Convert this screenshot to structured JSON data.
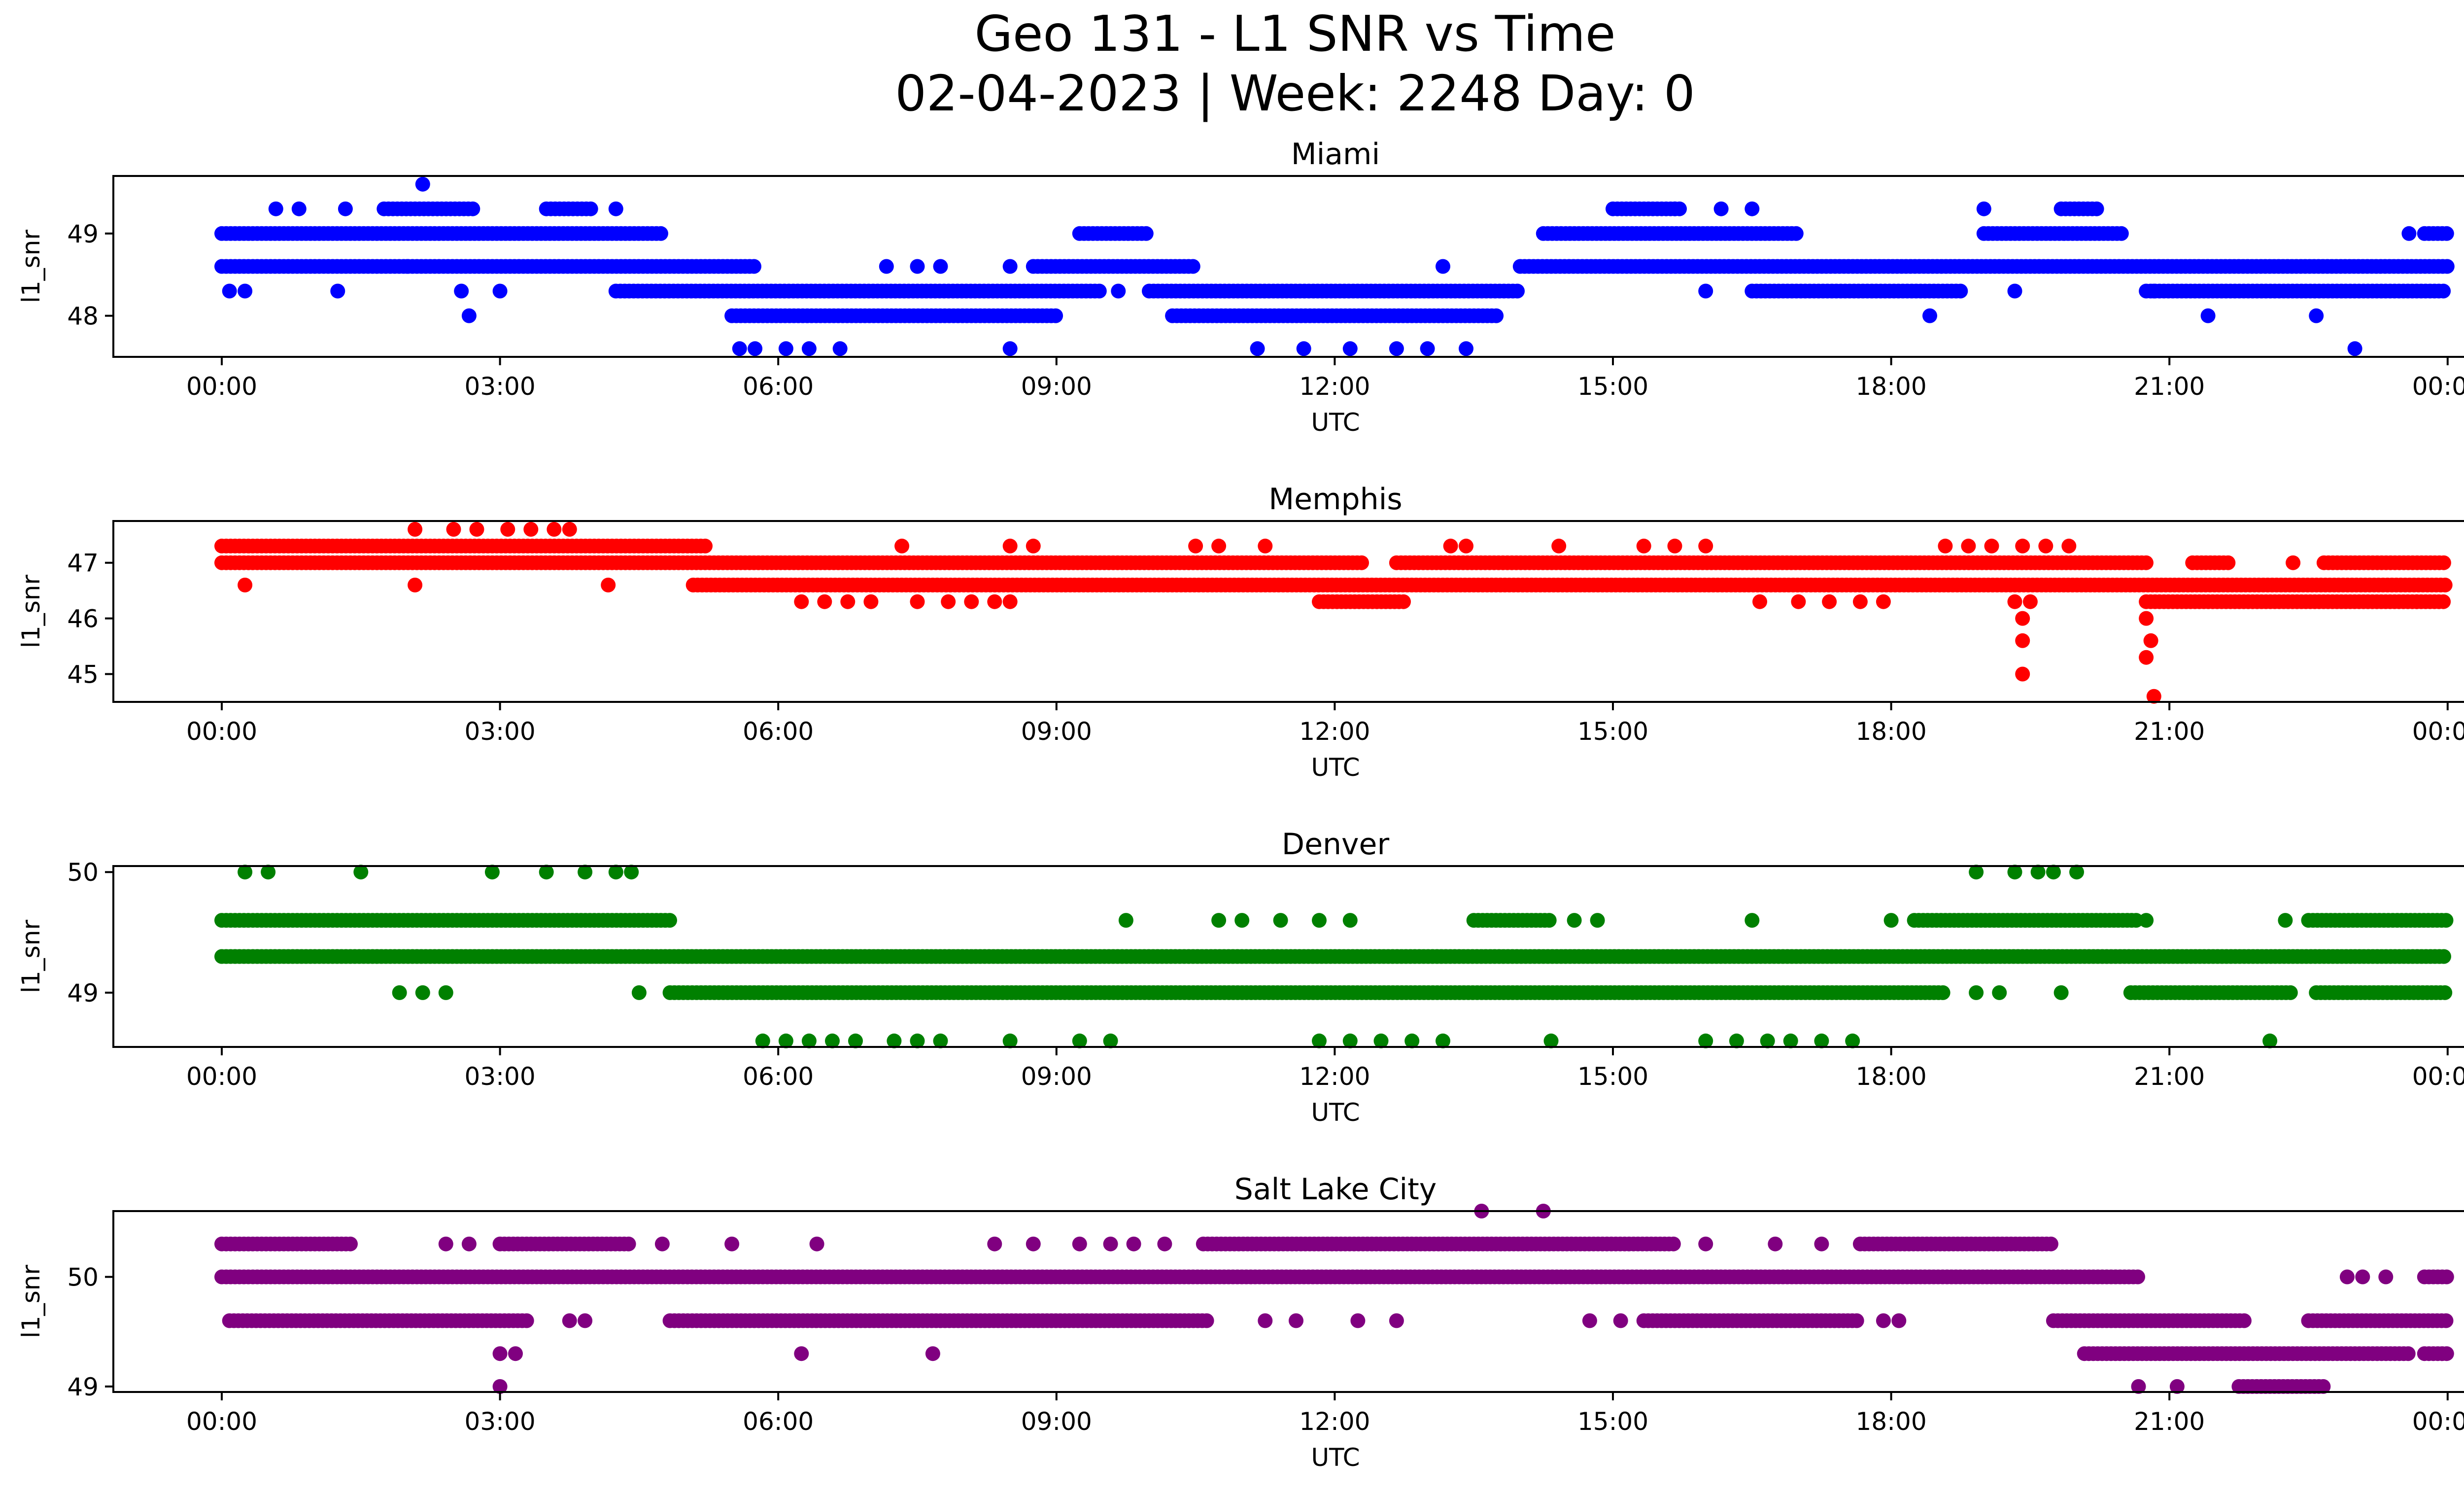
{
  "title_line1": "Geo 131 - L1 SNR vs Time",
  "title_line2": "02-04-2023 | Week: 2248 Day: 0",
  "chart_data": [
    {
      "type": "scatter",
      "title": "Miami",
      "xlabel": "UTC",
      "ylabel": "l1_snr",
      "color": "#0000ff",
      "x_ticks": [
        "00:00",
        "03:00",
        "06:00",
        "09:00",
        "12:00",
        "15:00",
        "18:00",
        "21:00",
        "00:00"
      ],
      "y_ticks": [
        48,
        49
      ],
      "xlim": [
        "-01:12",
        "25:12"
      ],
      "ylim": [
        47.5,
        49.7
      ],
      "series": [
        {
          "values_level": 49.0,
          "segments": [
            [
              "00:00",
              "04:45"
            ],
            [
              "09:15",
              "10:00"
            ],
            [
              "14:15",
              "17:00"
            ],
            [
              "19:00",
              "20:30"
            ],
            [
              "23:45",
              "24:00"
            ]
          ]
        },
        {
          "values_level": 48.6,
          "segments": [
            [
              "00:00",
              "05:45"
            ],
            [
              "08:45",
              "10:30"
            ],
            [
              "14:00",
              "24:00"
            ]
          ]
        },
        {
          "values_level": 48.3,
          "segments": [
            [
              "04:15",
              "09:30"
            ],
            [
              "10:00",
              "14:00"
            ],
            [
              "16:30",
              "18:45"
            ],
            [
              "20:45",
              "24:00"
            ]
          ]
        },
        {
          "values_level": 48.0,
          "segments": [
            [
              "05:30",
              "09:00"
            ],
            [
              "10:15",
              "13:45"
            ]
          ]
        },
        {
          "values_level": 49.3,
          "segments": [
            [
              "01:45",
              "02:45"
            ],
            [
              "03:30",
              "04:00"
            ],
            [
              "15:00",
              "15:45"
            ],
            [
              "19:50",
              "20:15"
            ]
          ]
        }
      ],
      "sparse_points": [
        [
          "00:05",
          48.3
        ],
        [
          "00:15",
          48.3
        ],
        [
          "00:35",
          49.3
        ],
        [
          "00:50",
          49.3
        ],
        [
          "01:20",
          49.3
        ],
        [
          "01:15",
          48.3
        ],
        [
          "02:10",
          49.6
        ],
        [
          "02:00",
          48.6
        ],
        [
          "02:40",
          48.0
        ],
        [
          "02:35",
          48.3
        ],
        [
          "03:00",
          48.3
        ],
        [
          "04:15",
          49.3
        ],
        [
          "05:35",
          47.6
        ],
        [
          "05:45",
          47.6
        ],
        [
          "06:05",
          47.6
        ],
        [
          "06:20",
          47.6
        ],
        [
          "06:40",
          47.6
        ],
        [
          "08:30",
          47.6
        ],
        [
          "07:10",
          48.6
        ],
        [
          "07:30",
          48.6
        ],
        [
          "07:45",
          48.6
        ],
        [
          "08:30",
          48.6
        ],
        [
          "09:40",
          48.3
        ],
        [
          "11:10",
          47.6
        ],
        [
          "11:40",
          47.6
        ],
        [
          "12:10",
          47.6
        ],
        [
          "12:40",
          47.6
        ],
        [
          "13:00",
          47.6
        ],
        [
          "13:25",
          47.6
        ],
        [
          "13:10",
          48.6
        ],
        [
          "16:00",
          48.3
        ],
        [
          "15:40",
          49.3
        ],
        [
          "16:10",
          49.3
        ],
        [
          "16:30",
          49.3
        ],
        [
          "18:25",
          48.0
        ],
        [
          "19:00",
          49.3
        ],
        [
          "19:20",
          48.3
        ],
        [
          "20:50",
          48.3
        ],
        [
          "21:25",
          48.0
        ],
        [
          "22:35",
          48.0
        ],
        [
          "23:00",
          47.6
        ],
        [
          "23:35",
          49.0
        ]
      ]
    },
    {
      "type": "scatter",
      "title": "Memphis",
      "xlabel": "UTC",
      "ylabel": "l1_snr",
      "color": "#ff0000",
      "x_ticks": [
        "00:00",
        "03:00",
        "06:00",
        "09:00",
        "12:00",
        "15:00",
        "18:00",
        "21:00",
        "00:00"
      ],
      "y_ticks": [
        45,
        46,
        47
      ],
      "xlim": [
        "-01:12",
        "25:12"
      ],
      "ylim": [
        44.5,
        47.75
      ],
      "series": [
        {
          "values_level": 47.3,
          "segments": [
            [
              "00:00",
              "05:15"
            ]
          ]
        },
        {
          "values_level": 47.0,
          "segments": [
            [
              "00:00",
              "12:20"
            ],
            [
              "12:40",
              "20:45"
            ],
            [
              "21:15",
              "21:40"
            ],
            [
              "22:40",
              "24:00"
            ]
          ]
        },
        {
          "values_level": 46.6,
          "segments": [
            [
              "05:05",
              "24:00"
            ]
          ]
        },
        {
          "values_level": 46.3,
          "segments": [
            [
              "11:50",
              "12:45"
            ],
            [
              "20:45",
              "24:00"
            ]
          ]
        }
      ],
      "sparse_points": [
        [
          "00:15",
          46.6
        ],
        [
          "02:05",
          46.6
        ],
        [
          "04:10",
          46.6
        ],
        [
          "02:05",
          47.6
        ],
        [
          "02:30",
          47.6
        ],
        [
          "02:45",
          47.6
        ],
        [
          "03:05",
          47.6
        ],
        [
          "03:20",
          47.6
        ],
        [
          "03:35",
          47.6
        ],
        [
          "03:45",
          47.6
        ],
        [
          "06:15",
          46.3
        ],
        [
          "06:30",
          46.3
        ],
        [
          "06:45",
          46.3
        ],
        [
          "07:00",
          46.3
        ],
        [
          "07:30",
          46.3
        ],
        [
          "07:50",
          46.3
        ],
        [
          "08:05",
          46.3
        ],
        [
          "08:20",
          46.3
        ],
        [
          "08:30",
          46.3
        ],
        [
          "07:20",
          47.3
        ],
        [
          "08:30",
          47.3
        ],
        [
          "08:45",
          47.3
        ],
        [
          "10:30",
          47.3
        ],
        [
          "10:45",
          47.3
        ],
        [
          "11:15",
          47.3
        ],
        [
          "13:15",
          47.3
        ],
        [
          "13:25",
          47.3
        ],
        [
          "14:25",
          47.3
        ],
        [
          "15:20",
          47.3
        ],
        [
          "15:40",
          47.3
        ],
        [
          "16:00",
          47.3
        ],
        [
          "16:35",
          46.3
        ],
        [
          "17:00",
          46.3
        ],
        [
          "17:20",
          46.3
        ],
        [
          "17:40",
          46.3
        ],
        [
          "17:55",
          46.3
        ],
        [
          "18:35",
          47.3
        ],
        [
          "18:50",
          47.3
        ],
        [
          "19:05",
          47.3
        ],
        [
          "19:25",
          47.3
        ],
        [
          "19:40",
          47.3
        ],
        [
          "19:55",
          47.3
        ],
        [
          "19:25",
          46.0
        ],
        [
          "19:25",
          45.6
        ],
        [
          "19:25",
          45.0
        ],
        [
          "19:20",
          46.3
        ],
        [
          "19:30",
          46.3
        ],
        [
          "20:45",
          46.0
        ],
        [
          "20:48",
          45.6
        ],
        [
          "20:45",
          45.3
        ],
        [
          "20:50",
          44.6
        ],
        [
          "22:20",
          47.0
        ],
        [
          "23:40",
          46.3
        ]
      ]
    },
    {
      "type": "scatter",
      "title": "Denver",
      "xlabel": "UTC",
      "ylabel": "l1_snr",
      "color": "#008000",
      "x_ticks": [
        "00:00",
        "03:00",
        "06:00",
        "09:00",
        "12:00",
        "15:00",
        "18:00",
        "21:00",
        "00:00"
      ],
      "y_ticks": [
        49,
        50
      ],
      "xlim": [
        "-01:12",
        "25:12"
      ],
      "ylim": [
        48.55,
        50.05
      ],
      "series": [
        {
          "values_level": 49.3,
          "segments": [
            [
              "00:00",
              "24:00"
            ]
          ]
        },
        {
          "values_level": 49.6,
          "segments": [
            [
              "00:00",
              "04:50"
            ],
            [
              "13:30",
              "14:20"
            ],
            [
              "18:15",
              "20:40"
            ],
            [
              "22:30",
              "24:00"
            ]
          ]
        },
        {
          "values_level": 49.0,
          "segments": [
            [
              "04:50",
              "18:35"
            ],
            [
              "20:35",
              "22:20"
            ],
            [
              "22:35",
              "24:00"
            ]
          ]
        }
      ],
      "sparse_points": [
        [
          "00:15",
          50.0
        ],
        [
          "00:30",
          50.0
        ],
        [
          "01:30",
          50.0
        ],
        [
          "02:55",
          50.0
        ],
        [
          "03:30",
          50.0
        ],
        [
          "03:55",
          50.0
        ],
        [
          "04:15",
          50.0
        ],
        [
          "04:25",
          50.0
        ],
        [
          "01:55",
          49.0
        ],
        [
          "02:10",
          49.0
        ],
        [
          "02:25",
          49.0
        ],
        [
          "04:30",
          49.0
        ],
        [
          "05:50",
          48.6
        ],
        [
          "06:05",
          48.6
        ],
        [
          "06:20",
          48.6
        ],
        [
          "06:35",
          48.6
        ],
        [
          "06:50",
          48.6
        ],
        [
          "07:15",
          48.6
        ],
        [
          "07:30",
          48.6
        ],
        [
          "07:45",
          48.6
        ],
        [
          "08:30",
          48.6
        ],
        [
          "09:15",
          48.6
        ],
        [
          "09:35",
          48.6
        ],
        [
          "09:45",
          49.6
        ],
        [
          "10:45",
          49.6
        ],
        [
          "11:00",
          49.6
        ],
        [
          "11:25",
          49.6
        ],
        [
          "11:50",
          49.6
        ],
        [
          "12:10",
          49.6
        ],
        [
          "11:50",
          48.6
        ],
        [
          "12:10",
          48.6
        ],
        [
          "12:30",
          48.6
        ],
        [
          "12:50",
          48.6
        ],
        [
          "13:10",
          48.6
        ],
        [
          "14:35",
          49.6
        ],
        [
          "14:50",
          49.6
        ],
        [
          "14:20",
          48.6
        ],
        [
          "16:00",
          48.6
        ],
        [
          "16:20",
          48.6
        ],
        [
          "16:40",
          48.6
        ],
        [
          "16:55",
          48.6
        ],
        [
          "17:15",
          48.6
        ],
        [
          "17:35",
          48.6
        ],
        [
          "16:30",
          49.6
        ],
        [
          "18:00",
          49.6
        ],
        [
          "18:55",
          50.0
        ],
        [
          "19:20",
          50.0
        ],
        [
          "19:35",
          50.0
        ],
        [
          "19:45",
          50.0
        ],
        [
          "20:00",
          50.0
        ],
        [
          "18:55",
          49.0
        ],
        [
          "19:10",
          49.0
        ],
        [
          "19:50",
          49.0
        ],
        [
          "20:45",
          49.6
        ],
        [
          "22:05",
          48.6
        ],
        [
          "22:15",
          49.6
        ]
      ]
    },
    {
      "type": "scatter",
      "title": "Salt Lake City",
      "xlabel": "UTC",
      "ylabel": "l1_snr",
      "color": "#800080",
      "x_ticks": [
        "00:00",
        "03:00",
        "06:00",
        "09:00",
        "12:00",
        "15:00",
        "18:00",
        "21:00",
        "00:00"
      ],
      "y_ticks": [
        49,
        50
      ],
      "xlim": [
        "-01:12",
        "25:12"
      ],
      "ylim": [
        48.95,
        50.6
      ],
      "series": [
        {
          "values_level": 50.0,
          "segments": [
            [
              "00:00",
              "20:40"
            ],
            [
              "23:45",
              "24:00"
            ]
          ]
        },
        {
          "values_level": 50.3,
          "segments": [
            [
              "00:00",
              "01:25"
            ],
            [
              "03:00",
              "04:25"
            ],
            [
              "10:35",
              "15:40"
            ],
            [
              "17:40",
              "19:45"
            ]
          ]
        },
        {
          "values_level": 49.6,
          "segments": [
            [
              "00:05",
              "03:20"
            ],
            [
              "04:50",
              "10:40"
            ],
            [
              "15:20",
              "17:40"
            ],
            [
              "19:45",
              "21:50"
            ],
            [
              "22:30",
              "24:00"
            ]
          ]
        },
        {
          "values_level": 49.3,
          "segments": [
            [
              "20:05",
              "23:35"
            ],
            [
              "23:45",
              "24:00"
            ]
          ]
        },
        {
          "values_level": 49.0,
          "segments": [
            [
              "21:45",
              "22:40"
            ]
          ]
        }
      ],
      "sparse_points": [
        [
          "02:25",
          50.3
        ],
        [
          "02:40",
          50.3
        ],
        [
          "04:45",
          50.3
        ],
        [
          "05:30",
          50.3
        ],
        [
          "06:25",
          50.3
        ],
        [
          "08:20",
          50.3
        ],
        [
          "08:45",
          50.3
        ],
        [
          "09:15",
          50.3
        ],
        [
          "09:35",
          50.3
        ],
        [
          "09:50",
          50.3
        ],
        [
          "10:10",
          50.3
        ],
        [
          "16:00",
          50.3
        ],
        [
          "16:45",
          50.3
        ],
        [
          "17:15",
          50.3
        ],
        [
          "13:35",
          50.6
        ],
        [
          "14:15",
          50.6
        ],
        [
          "03:45",
          49.6
        ],
        [
          "03:55",
          49.6
        ],
        [
          "11:15",
          49.6
        ],
        [
          "11:35",
          49.6
        ],
        [
          "12:15",
          49.6
        ],
        [
          "12:40",
          49.6
        ],
        [
          "14:45",
          49.6
        ],
        [
          "15:05",
          49.6
        ],
        [
          "17:55",
          49.6
        ],
        [
          "18:05",
          49.6
        ],
        [
          "03:00",
          49.0
        ],
        [
          "03:00",
          49.3
        ],
        [
          "03:10",
          49.3
        ],
        [
          "06:15",
          49.3
        ],
        [
          "07:40",
          49.3
        ],
        [
          "20:40",
          49.0
        ],
        [
          "21:05",
          49.0
        ],
        [
          "22:55",
          50.0
        ],
        [
          "23:05",
          50.0
        ],
        [
          "23:20",
          50.0
        ]
      ]
    }
  ]
}
